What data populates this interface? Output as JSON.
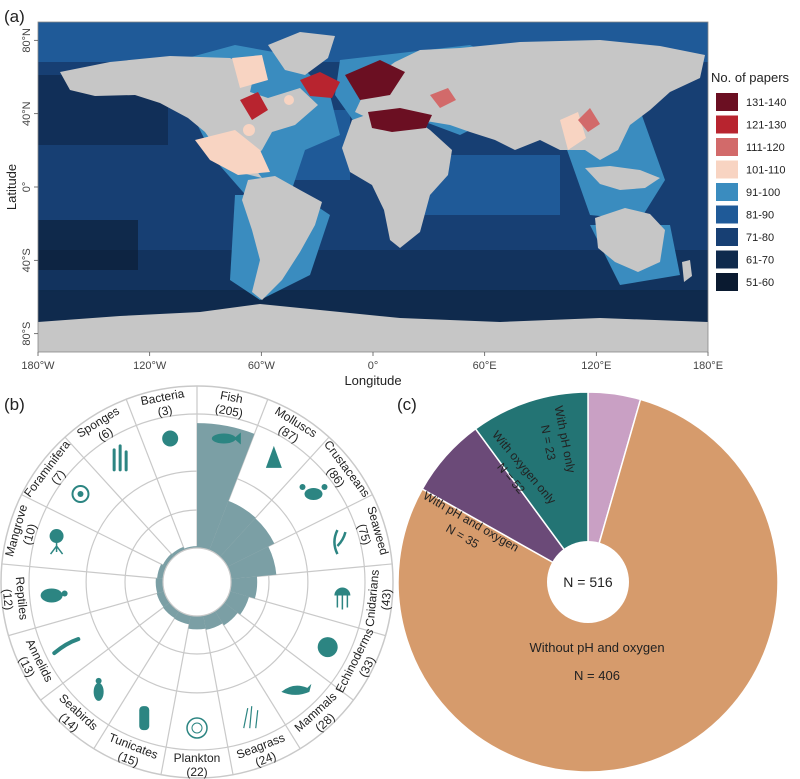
{
  "panel_labels": {
    "a": "(a)",
    "b": "(b)",
    "c": "(c)"
  },
  "map": {
    "xlabel": "Longitude",
    "ylabel": "Latitude",
    "xticks": [
      "180°W",
      "120°W",
      "60°W",
      "0°",
      "60°E",
      "120°E",
      "180°E"
    ],
    "yticks": [
      "80°N",
      "40°N",
      "0°",
      "40°S",
      "80°S"
    ],
    "legend_title": "No. of papers",
    "legend": [
      {
        "label": "131-140",
        "color": "#6b0f22"
      },
      {
        "label": "121-130",
        "color": "#b8242f"
      },
      {
        "label": "111-120",
        "color": "#d26a6a"
      },
      {
        "label": "101-110",
        "color": "#f8d4c2"
      },
      {
        "label": "91-100",
        "color": "#3a8cbf"
      },
      {
        "label": "81-90",
        "color": "#1f5a98"
      },
      {
        "label": "71-80",
        "color": "#173f73"
      },
      {
        "label": "61-70",
        "color": "#0f2a4d"
      },
      {
        "label": "51-60",
        "color": "#0a1a30"
      }
    ]
  },
  "colors": {
    "land": "#c6c6c6",
    "fish_bar": "#7b9fa5",
    "icon": "#2c8582",
    "ring": "#c9c9c9"
  },
  "chart_data": [
    {
      "type": "bar",
      "subtype": "radial",
      "categories": [
        "Fish",
        "Molluscs",
        "Crustaceans",
        "Seaweed",
        "Cnidarians",
        "Echinoderms",
        "Mammals",
        "Seagrass",
        "Plankton",
        "Tunicates",
        "Seabirds",
        "Annelids",
        "Reptiles",
        "Mangrove",
        "Foraminifera",
        "Sponges",
        "Bacteria"
      ],
      "values": [
        205,
        87,
        86,
        75,
        43,
        33,
        28,
        24,
        22,
        15,
        14,
        13,
        12,
        10,
        7,
        6,
        3
      ],
      "value_labels": [
        "(205)",
        "(87)",
        "(86)",
        "(75)",
        "(43)",
        "(33)",
        "(28)",
        "(24)",
        "(22)",
        "(15)",
        "(14)",
        "(13)",
        "(12)",
        "(10)",
        "(7)",
        "(6)",
        "(3)"
      ]
    },
    {
      "type": "pie",
      "subtype": "donut",
      "center_label": "N = 516",
      "slices": [
        {
          "label": "With pH only",
          "n_label": "N = 23",
          "value": 23,
          "color": "#c9a0c4"
        },
        {
          "label": "Without pH and oxygen",
          "n_label": "N = 406",
          "value": 406,
          "color": "#d69b6c"
        },
        {
          "label": "With pH and oxygen",
          "n_label": "N = 35",
          "value": 35,
          "color": "#6b4a78"
        },
        {
          "label": "With oxygen only",
          "n_label": "N = 52",
          "value": 52,
          "color": "#237474"
        }
      ]
    }
  ]
}
